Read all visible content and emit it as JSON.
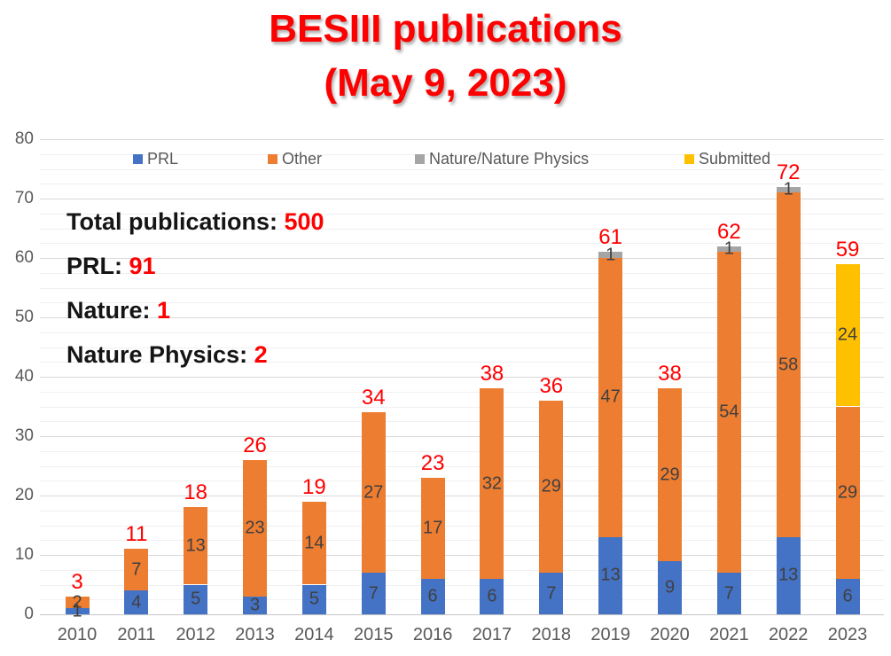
{
  "title": {
    "line1": "BESIII publications",
    "line2": "(May 9, 2023)",
    "color": "#fe0000"
  },
  "stats": [
    {
      "label": "Total publications: ",
      "value": "500"
    },
    {
      "label": "PRL: ",
      "value": "91"
    },
    {
      "label": "Nature: ",
      "value": "1"
    },
    {
      "label": "Nature Physics: ",
      "value": "2"
    }
  ],
  "y_axis": {
    "ticks": [
      "0",
      "10",
      "20",
      "30",
      "40",
      "50",
      "60",
      "70",
      "80"
    ],
    "tick_color": "#595959"
  },
  "chart_data": {
    "type": "bar",
    "stacked": true,
    "title": "BESIII publications (May 9, 2023)",
    "xlabel": "",
    "ylabel": "",
    "ylim": [
      0,
      80
    ],
    "ytick_step": 10,
    "grid": true,
    "legend_position": "top",
    "categories": [
      "2010",
      "2011",
      "2012",
      "2013",
      "2014",
      "2015",
      "2016",
      "2017",
      "2018",
      "2019",
      "2020",
      "2021",
      "2022",
      "2023"
    ],
    "series": [
      {
        "name": "PRL",
        "color": "#4472c4",
        "values": [
          1,
          4,
          5,
          3,
          5,
          7,
          6,
          6,
          7,
          13,
          9,
          7,
          13,
          6
        ]
      },
      {
        "name": "Other",
        "color": "#ed7d31",
        "values": [
          2,
          7,
          13,
          23,
          14,
          27,
          17,
          32,
          29,
          47,
          29,
          54,
          58,
          29
        ]
      },
      {
        "name": "Nature/Nature Physics",
        "color": "#a5a5a5",
        "values": [
          0,
          0,
          0,
          0,
          0,
          0,
          0,
          0,
          0,
          1,
          0,
          1,
          1,
          0
        ]
      },
      {
        "name": "Submitted",
        "color": "#ffc000",
        "values": [
          0,
          0,
          0,
          0,
          0,
          0,
          0,
          0,
          0,
          0,
          0,
          0,
          0,
          24
        ]
      }
    ],
    "totals": [
      3,
      11,
      18,
      26,
      19,
      34,
      23,
      38,
      36,
      61,
      38,
      62,
      72,
      59
    ],
    "total_label_color": "#fe0000",
    "segment_label_color": "#404040"
  }
}
